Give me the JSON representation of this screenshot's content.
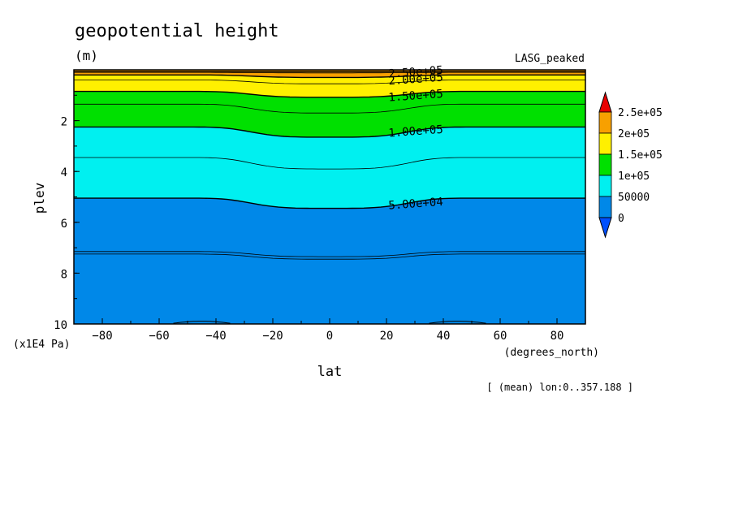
{
  "title": "geopotential height",
  "units": "(m)",
  "experiment": "LASG_peaked",
  "footer": "[ (mean) lon:0..357.188 ]",
  "chart_data": {
    "type": "contour",
    "xlabel": "lat",
    "xunits": "(degrees_north)",
    "ylabel": "plev",
    "yunits": "(x1E4 Pa)",
    "xlim": [
      -90,
      90
    ],
    "ylim": [
      0,
      10
    ],
    "y_reversed": true,
    "x_ticks": [
      -80,
      -60,
      -40,
      -20,
      0,
      20,
      40,
      60,
      80
    ],
    "y_ticks": [
      2,
      4,
      6,
      8,
      10
    ],
    "levels": [
      0,
      50000,
      100000,
      150000,
      200000,
      250000
    ],
    "colorbar_labels": [
      "2.5e+05",
      "2e+05",
      "1.5e+05",
      "1e+05",
      "50000",
      "0"
    ],
    "colorbar_colors": [
      "#0088e8",
      "#00f0f0",
      "#00e000",
      "#fff000",
      "#f8a000"
    ],
    "colorbar_over": "#e80000",
    "colorbar_under": "#0050ff",
    "contour_labels": [
      {
        "text": "2.50e+05",
        "lat": 20,
        "plev": 0.07
      },
      {
        "text": "2.00e+05",
        "lat": 20,
        "plev": 0.35
      },
      {
        "text": "1.50e+05",
        "lat": 20,
        "plev": 1.0
      },
      {
        "text": "1.00e+05",
        "lat": 20,
        "plev": 2.4
      },
      {
        "text": "5.00e+04",
        "lat": 20,
        "plev": 5.25
      }
    ],
    "contours": [
      {
        "level": 250000,
        "pole": 0.07,
        "eq": 0.07
      },
      {
        "level": 225000,
        "pole": 0.1,
        "eq": 0.12
      },
      {
        "level": 200000,
        "pole": 0.2,
        "eq": 0.3
      },
      {
        "level": 175000,
        "pole": 0.4,
        "eq": 0.55
      },
      {
        "level": 150000,
        "pole": 0.85,
        "eq": 1.08
      },
      {
        "level": 125000,
        "pole": 1.35,
        "eq": 1.7
      },
      {
        "level": 100000,
        "pole": 2.25,
        "eq": 2.65
      },
      {
        "level": 75000,
        "pole": 3.45,
        "eq": 3.9
      },
      {
        "level": 50000,
        "pole": 5.05,
        "eq": 5.45
      },
      {
        "level": 25000,
        "pole": 7.15,
        "eq": 7.35
      },
      {
        "level": 24000,
        "pole": 7.25,
        "eq": 7.45
      }
    ]
  }
}
